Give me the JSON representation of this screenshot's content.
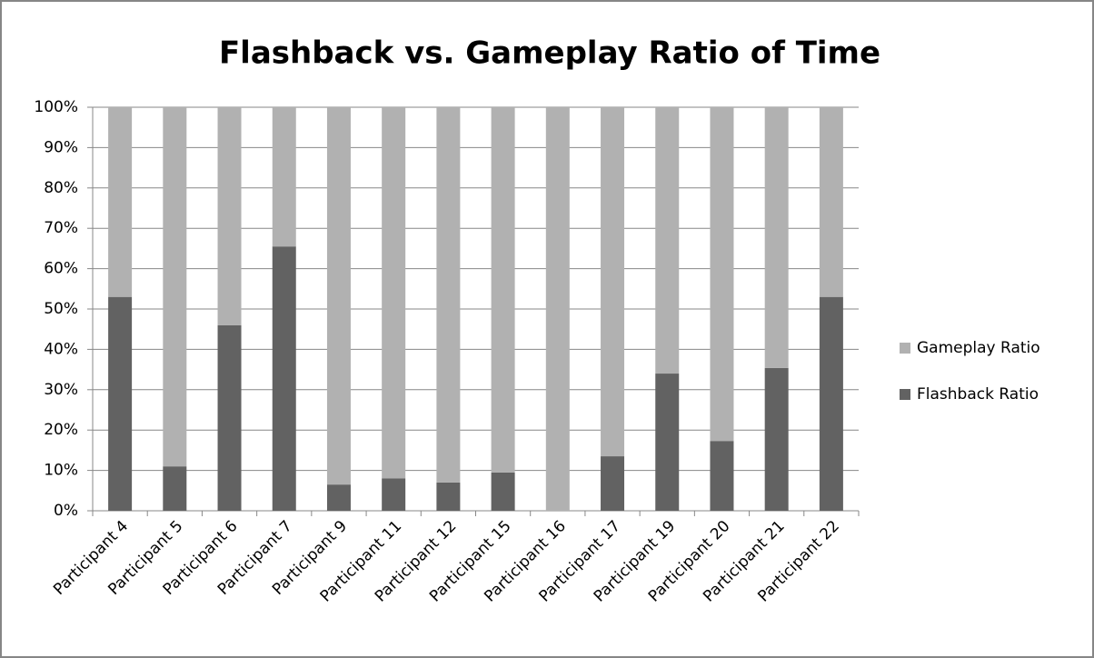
{
  "chart_data": {
    "type": "stacked_bar",
    "title": "Flashback vs. Gameplay Ratio of Time",
    "categories": [
      "Participant 4",
      "Participant 5",
      "Participant 6",
      "Participant 7",
      "Participant 9",
      "Participant 11",
      "Participant 12",
      "Participant 15",
      "Participant 16",
      "Participant 17",
      "Participant 19",
      "Participant 20",
      "Participant 21",
      "Participant 22"
    ],
    "series": [
      {
        "name": "Flashback Ratio",
        "color": "#626262",
        "values": [
          53,
          11,
          46,
          65.5,
          6.5,
          8,
          7,
          9.5,
          0,
          13.5,
          34,
          17.3,
          35.4,
          53
        ]
      },
      {
        "name": "Gameplay Ratio",
        "color": "#b1b1b1",
        "values": [
          47,
          89,
          54,
          34.5,
          93.5,
          92,
          93,
          90.5,
          100,
          86.5,
          66,
          82.7,
          64.6,
          47
        ]
      }
    ],
    "ylim": [
      0,
      100
    ],
    "yticks": [
      {
        "value": 0,
        "label": "0%"
      },
      {
        "value": 10,
        "label": "10%"
      },
      {
        "value": 20,
        "label": "20%"
      },
      {
        "value": 30,
        "label": "30%"
      },
      {
        "value": 40,
        "label": "40%"
      },
      {
        "value": 50,
        "label": "50%"
      },
      {
        "value": 60,
        "label": "60%"
      },
      {
        "value": 70,
        "label": "70%"
      },
      {
        "value": 80,
        "label": "80%"
      },
      {
        "value": 90,
        "label": "90%"
      },
      {
        "value": 100,
        "label": "100%"
      }
    ],
    "grid": true,
    "legend": "right"
  }
}
